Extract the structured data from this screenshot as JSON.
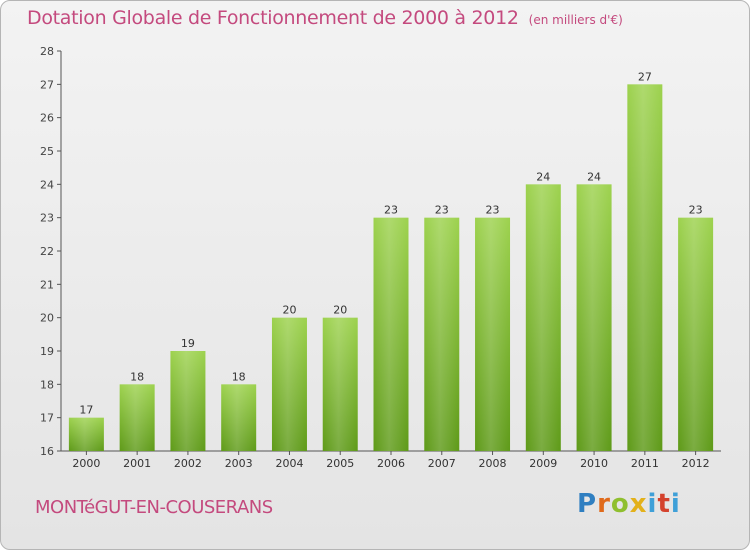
{
  "header": {
    "title": "Dotation Globale de Fonctionnement de 2000 à 2012",
    "unit": "(en milliers d'€)"
  },
  "footer": {
    "commune": "MONTéGUT-EN-COUSERANS",
    "logo": "Proxiti"
  },
  "colors": {
    "bar_top": "#9dd24e",
    "bar_bottom": "#5e9a18",
    "title": "#c44a7e"
  },
  "chart_data": {
    "type": "bar",
    "title": "Dotation Globale de Fonctionnement de 2000 à 2012",
    "unit_label": "(en milliers d'€)",
    "categories": [
      "2000",
      "2001",
      "2002",
      "2003",
      "2004",
      "2005",
      "2006",
      "2007",
      "2008",
      "2009",
      "2010",
      "2011",
      "2012"
    ],
    "values": [
      17,
      18,
      19,
      18,
      20,
      20,
      23,
      23,
      23,
      24,
      24,
      27,
      23
    ],
    "ylim": [
      16,
      28
    ],
    "yticks": [
      16,
      17,
      18,
      19,
      20,
      21,
      22,
      23,
      24,
      25,
      26,
      27,
      28
    ],
    "xlabel": "",
    "ylabel": "",
    "grid": false
  }
}
